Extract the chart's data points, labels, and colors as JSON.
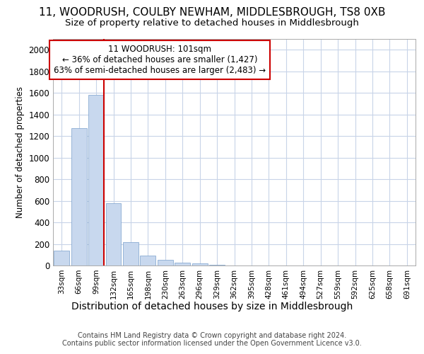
{
  "title_line1": "11, WOODRUSH, COULBY NEWHAM, MIDDLESBROUGH, TS8 0XB",
  "title_line2": "Size of property relative to detached houses in Middlesbrough",
  "xlabel": "Distribution of detached houses by size in Middlesbrough",
  "ylabel": "Number of detached properties",
  "footer_line1": "Contains HM Land Registry data © Crown copyright and database right 2024.",
  "footer_line2": "Contains public sector information licensed under the Open Government Licence v3.0.",
  "bar_color": "#c8d8ee",
  "bar_edge_color": "#7aa0cc",
  "grid_color": "#c8d4e8",
  "vline_color": "#cc0000",
  "vline_x": 2.45,
  "annotation_text": "11 WOODRUSH: 101sqm\n← 36% of detached houses are smaller (1,427)\n63% of semi-detached houses are larger (2,483) →",
  "annotation_box_facecolor": "#ffffff",
  "annotation_box_edgecolor": "#cc0000",
  "categories": [
    "33sqm",
    "66sqm",
    "99sqm",
    "132sqm",
    "165sqm",
    "198sqm",
    "230sqm",
    "263sqm",
    "296sqm",
    "329sqm",
    "362sqm",
    "395sqm",
    "428sqm",
    "461sqm",
    "494sqm",
    "527sqm",
    "559sqm",
    "592sqm",
    "625sqm",
    "658sqm",
    "691sqm"
  ],
  "values": [
    140,
    1270,
    1580,
    575,
    215,
    95,
    50,
    28,
    18,
    8,
    0,
    0,
    0,
    0,
    0,
    0,
    0,
    0,
    0,
    0,
    0
  ],
  "ylim_max": 2100,
  "yticks": [
    0,
    200,
    400,
    600,
    800,
    1000,
    1200,
    1400,
    1600,
    1800,
    2000
  ],
  "background_color": "#ffffff",
  "title1_fontsize": 11,
  "title2_fontsize": 9.5,
  "ylabel_fontsize": 8.5,
  "xlabel_fontsize": 10,
  "tick_fontsize": 7.5,
  "ytick_fontsize": 8.5,
  "footer_fontsize": 7,
  "annot_fontsize": 8.5
}
